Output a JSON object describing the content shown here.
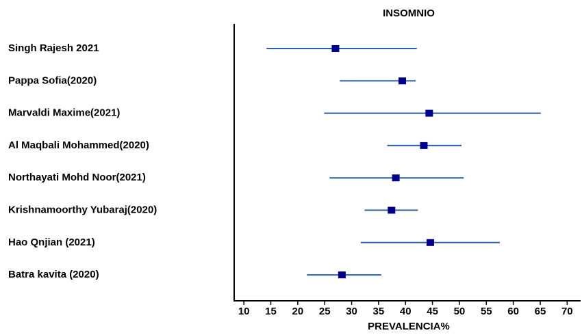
{
  "chart_data": {
    "type": "forest",
    "title": "INSOMNIO",
    "xlabel": "PREVALENCIA%",
    "categories": [
      "Singh Rajesh 2021",
      "Pappa Sofia(2020)",
      "Marvaldi Maxime(2021)",
      "Al Maqbali Mohammed(2020)",
      "Northayati Mohd Noor(2021)",
      "Krishnamoorthy Yubaraj(2020)",
      "Hao Qnjian (2021)",
      "Batra kavita (2020)"
    ],
    "values": [
      27.0,
      39.4,
      44.4,
      43.4,
      38.2,
      37.4,
      44.6,
      28.2
    ],
    "lower": [
      14.2,
      27.8,
      24.9,
      36.6,
      25.9,
      32.4,
      31.7,
      21.7
    ],
    "upper": [
      42.1,
      41.9,
      65.1,
      50.4,
      50.8,
      42.3,
      57.5,
      35.5
    ],
    "color": "#00008b",
    "ci_color": "#2a5fa8",
    "xlim": [
      8.2,
      72.5
    ],
    "xticks": [
      10,
      15,
      20,
      25,
      30,
      35,
      40,
      45,
      50,
      55,
      60,
      65,
      70
    ]
  }
}
